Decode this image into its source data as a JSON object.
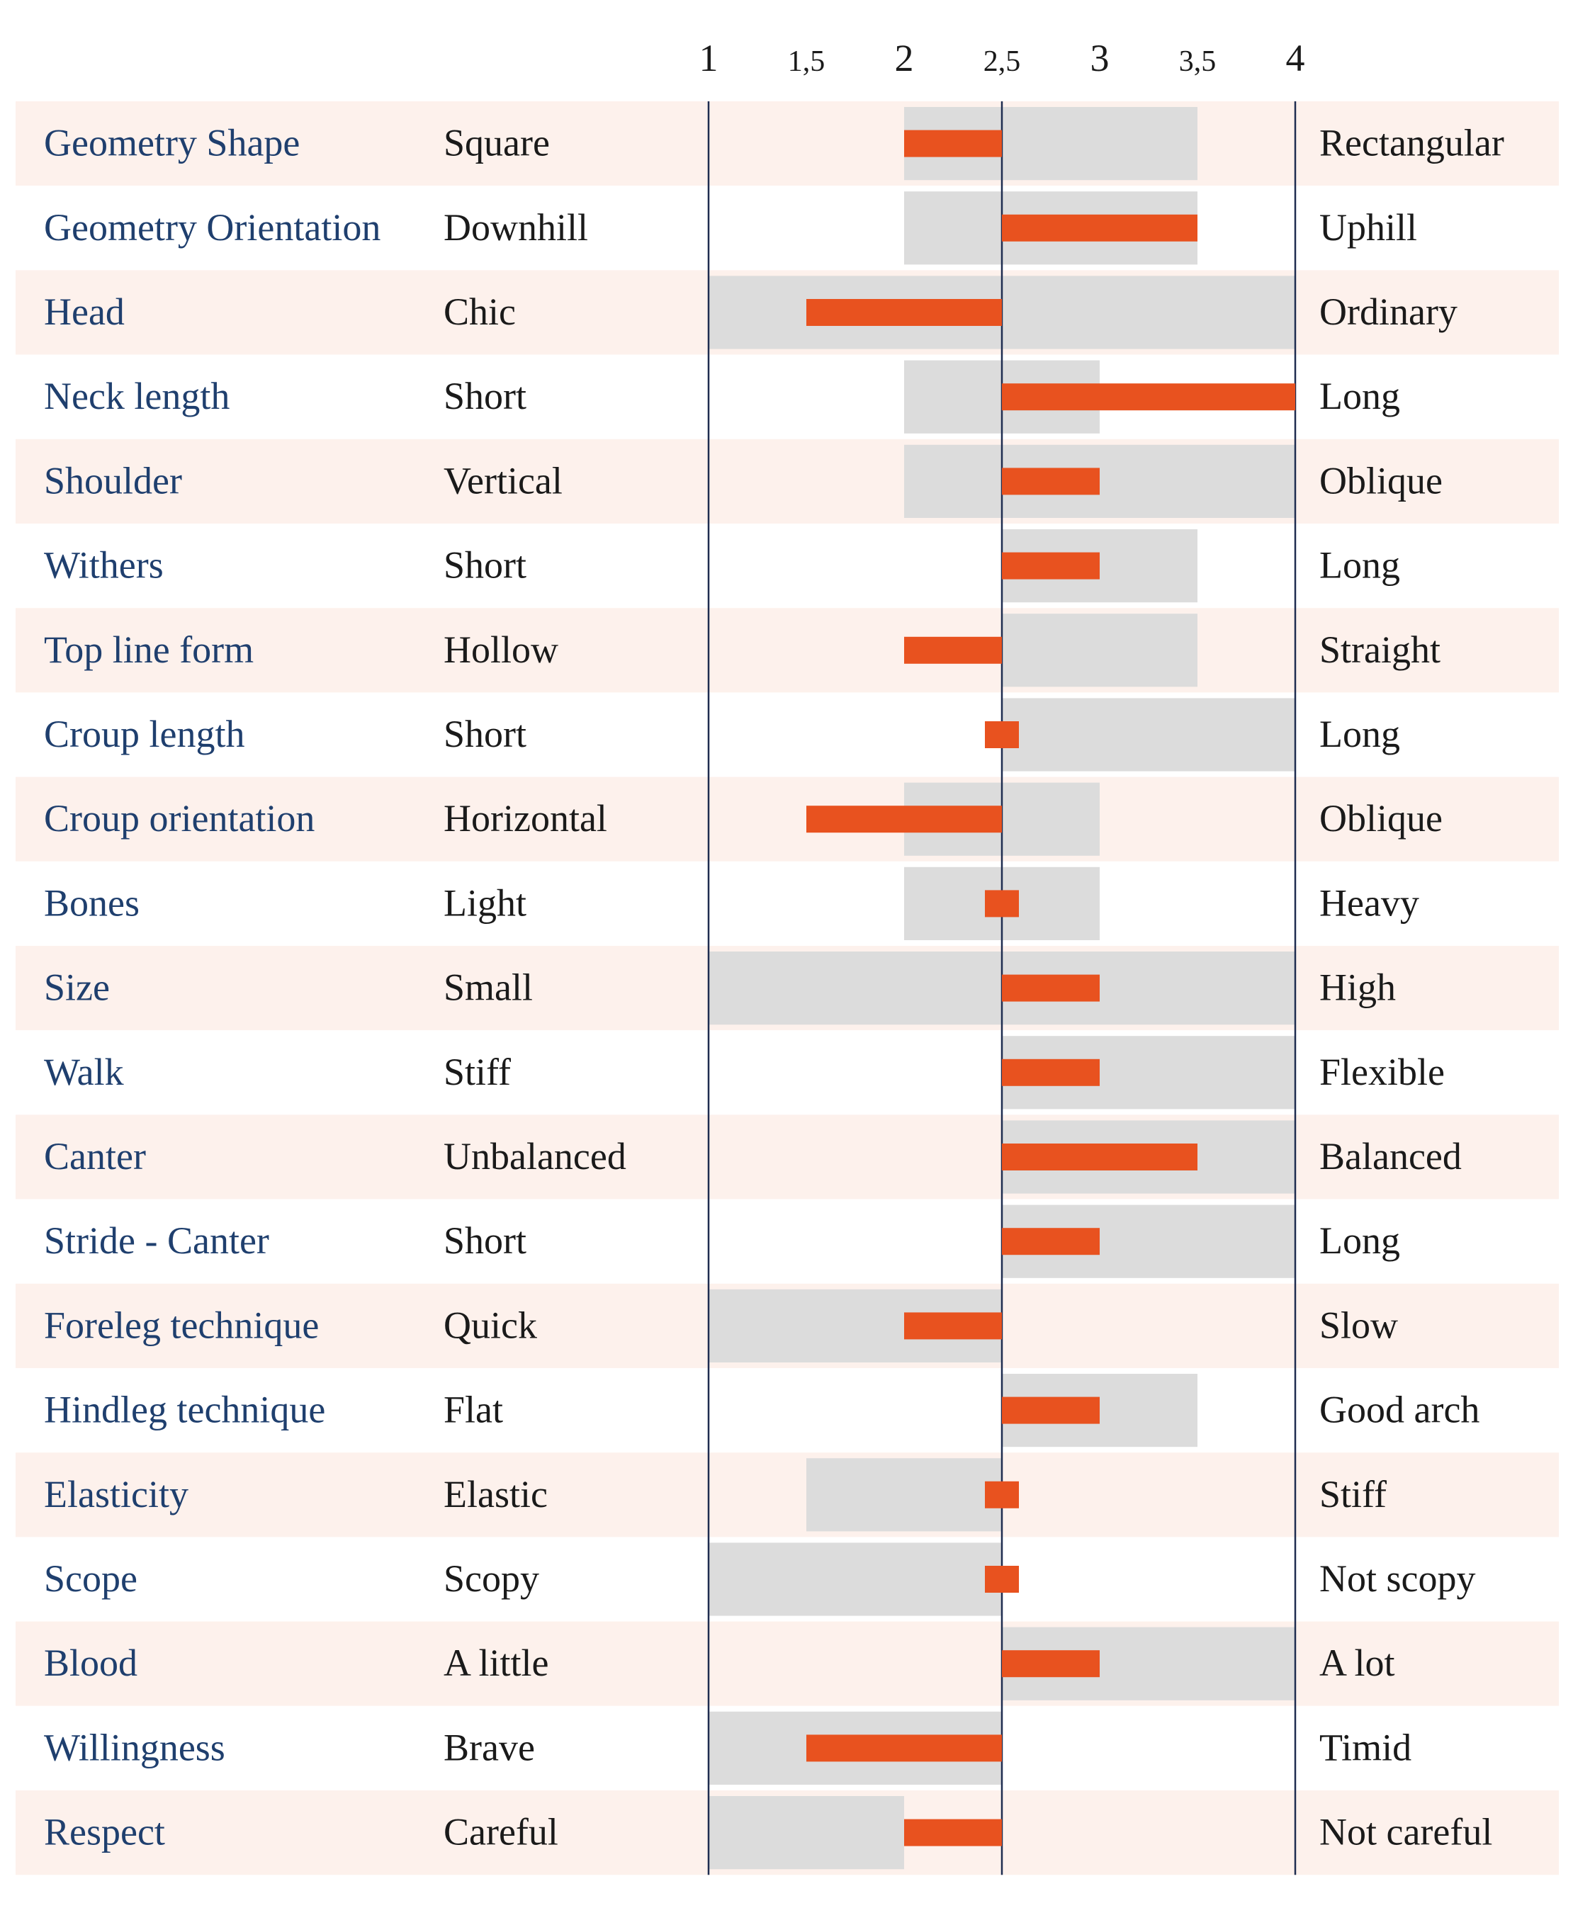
{
  "chart_data": {
    "type": "bar",
    "title": "",
    "xlabel": "",
    "ylabel": "",
    "xlim": [
      1,
      4
    ],
    "baseline": 2.5,
    "x_ticks": [
      1,
      1.5,
      2,
      2.5,
      3,
      3.5,
      4
    ],
    "x_tick_labels": [
      "1",
      "1,5",
      "2",
      "2,5",
      "3",
      "3,5",
      "4"
    ],
    "colors": {
      "trait": "#1f3f6e",
      "text": "#1a1a1a",
      "band_odd": "#fdf1ec",
      "band_even": "#ffffff",
      "range": "#dcdcdc",
      "value": "#e8521f",
      "axis": "#1f2d50"
    },
    "rows": [
      {
        "trait": "Geometry Shape",
        "low": "Square",
        "high": "Rectangular",
        "value": 2.0,
        "range": [
          2.0,
          3.5
        ]
      },
      {
        "trait": "Geometry Orientation",
        "low": "Downhill",
        "high": "Uphill",
        "value": 3.5,
        "range": [
          2.0,
          3.5
        ]
      },
      {
        "trait": "Head",
        "low": "Chic",
        "high": "Ordinary",
        "value": 1.5,
        "range": [
          1.0,
          4.0
        ]
      },
      {
        "trait": "Neck length",
        "low": "Short",
        "high": "Long",
        "value": 4.0,
        "range": [
          2.0,
          3.0
        ]
      },
      {
        "trait": "Shoulder",
        "low": "Vertical",
        "high": "Oblique",
        "value": 3.0,
        "range": [
          2.0,
          4.0
        ]
      },
      {
        "trait": "Withers",
        "low": "Short",
        "high": "Long",
        "value": 3.0,
        "range": [
          2.5,
          3.5
        ]
      },
      {
        "trait": "Top line form",
        "low": "Hollow",
        "high": "Straight",
        "value": 2.0,
        "range": [
          2.5,
          3.5
        ]
      },
      {
        "trait": "Croup length",
        "low": "Short",
        "high": "Long",
        "value": 2.5,
        "range": [
          2.5,
          4.0
        ]
      },
      {
        "trait": "Croup orientation",
        "low": "Horizontal",
        "high": "Oblique",
        "value": 1.5,
        "range": [
          2.0,
          3.0
        ]
      },
      {
        "trait": "Bones",
        "low": "Light",
        "high": "Heavy",
        "value": 2.5,
        "range": [
          2.0,
          3.0
        ]
      },
      {
        "trait": "Size",
        "low": "Small",
        "high": "High",
        "value": 3.0,
        "range": [
          1.0,
          4.0
        ]
      },
      {
        "trait": "Walk",
        "low": "Stiff",
        "high": "Flexible",
        "value": 3.0,
        "range": [
          2.5,
          4.0
        ]
      },
      {
        "trait": "Canter",
        "low": "Unbalanced",
        "high": "Balanced",
        "value": 3.5,
        "range": [
          2.5,
          4.0
        ]
      },
      {
        "trait": "Stride - Canter",
        "low": "Short",
        "high": "Long",
        "value": 3.0,
        "range": [
          2.5,
          4.0
        ]
      },
      {
        "trait": "Foreleg technique",
        "low": "Quick",
        "high": "Slow",
        "value": 2.0,
        "range": [
          1.0,
          2.5
        ]
      },
      {
        "trait": "Hindleg technique",
        "low": "Flat",
        "high": "Good arch",
        "value": 3.0,
        "range": [
          2.5,
          3.5
        ]
      },
      {
        "trait": "Elasticity",
        "low": "Elastic",
        "high": "Stiff",
        "value": 2.5,
        "range": [
          1.5,
          2.5
        ]
      },
      {
        "trait": "Scope",
        "low": "Scopy",
        "high": "Not scopy",
        "value": 2.5,
        "range": [
          1.0,
          2.5
        ]
      },
      {
        "trait": "Blood",
        "low": "A little",
        "high": "A lot",
        "value": 3.0,
        "range": [
          2.5,
          4.0
        ]
      },
      {
        "trait": "Willingness",
        "low": "Brave",
        "high": "Timid",
        "value": 1.5,
        "range": [
          1.0,
          2.5
        ]
      },
      {
        "trait": "Respect",
        "low": "Careful",
        "high": "Not careful",
        "value": 2.0,
        "range": [
          1.0,
          2.0
        ]
      }
    ]
  }
}
